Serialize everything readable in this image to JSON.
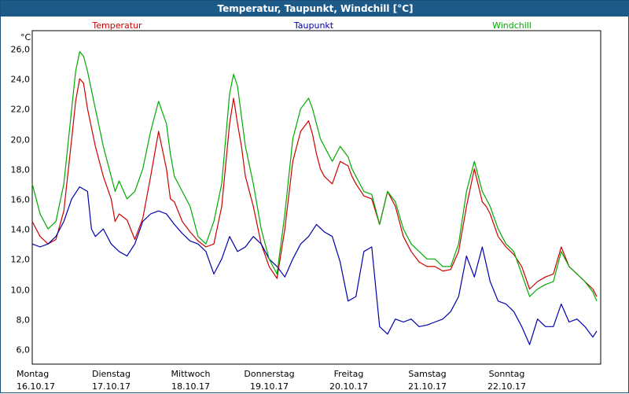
{
  "window": {
    "title": "Temperatur, Taupunkt, Windchill [°C]"
  },
  "chart_data": {
    "type": "line",
    "title": "Temperatur, Taupunkt, Windchill [°C]",
    "ylabel": "°C",
    "ylim": [
      5.0,
      27.2
    ],
    "xlim": [
      0,
      7.2
    ],
    "grid": true,
    "legend_position": "top",
    "yticks": [
      "26,0",
      "24,0",
      "22,0",
      "20,0",
      "18,0",
      "16,0",
      "14,0",
      "12,0",
      "10,0",
      "8,0",
      "6,0"
    ],
    "ytick_values": [
      26,
      24,
      22,
      20,
      18,
      16,
      14,
      12,
      10,
      8,
      6
    ],
    "xticks": [
      {
        "day": "Montag",
        "date": "16.10.17"
      },
      {
        "day": "Dienstag",
        "date": "17.10.17"
      },
      {
        "day": "Mittwoch",
        "date": "18.10.17"
      },
      {
        "day": "Donnerstag",
        "date": "19.10.17"
      },
      {
        "day": "Freitag",
        "date": "20.10.17"
      },
      {
        "day": "Samstag",
        "date": "21.10.17"
      },
      {
        "day": "Sonntag",
        "date": "22.10.17"
      }
    ],
    "series": [
      {
        "name": "Temperatur",
        "color": "#cc0000",
        "x": [
          0,
          0.1,
          0.2,
          0.3,
          0.4,
          0.5,
          0.55,
          0.6,
          0.65,
          0.7,
          0.8,
          0.9,
          1.0,
          1.05,
          1.1,
          1.2,
          1.3,
          1.4,
          1.5,
          1.6,
          1.7,
          1.75,
          1.8,
          1.9,
          2.0,
          2.1,
          2.2,
          2.3,
          2.4,
          2.5,
          2.55,
          2.6,
          2.65,
          2.7,
          2.8,
          2.9,
          3.0,
          3.1,
          3.2,
          3.3,
          3.4,
          3.5,
          3.55,
          3.6,
          3.65,
          3.7,
          3.8,
          3.9,
          4.0,
          4.05,
          4.1,
          4.2,
          4.3,
          4.4,
          4.5,
          4.6,
          4.7,
          4.8,
          4.9,
          5.0,
          5.1,
          5.2,
          5.3,
          5.4,
          5.5,
          5.6,
          5.7,
          5.75,
          5.8,
          5.9,
          6.0,
          6.1,
          6.2,
          6.3,
          6.4,
          6.5,
          6.6,
          6.7,
          6.8,
          6.9,
          7.0,
          7.1,
          7.15
        ],
        "y": [
          14.5,
          13.5,
          13.0,
          13.3,
          15.2,
          20.0,
          22.5,
          24.0,
          23.7,
          22.0,
          19.5,
          17.5,
          16.0,
          14.5,
          15.0,
          14.6,
          13.3,
          14.7,
          17.5,
          20.5,
          18.0,
          16.0,
          15.8,
          14.5,
          13.8,
          13.2,
          12.8,
          13.0,
          15.5,
          21.0,
          22.7,
          21.0,
          19.5,
          17.5,
          15.5,
          13.0,
          11.5,
          10.7,
          14.0,
          18.5,
          20.5,
          21.2,
          20.3,
          19.0,
          18.0,
          17.5,
          17.0,
          18.5,
          18.2,
          17.5,
          17.0,
          16.2,
          16.0,
          14.3,
          16.5,
          15.5,
          13.5,
          12.5,
          11.8,
          11.5,
          11.5,
          11.2,
          11.3,
          12.5,
          15.5,
          18.0,
          15.8,
          15.5,
          15.0,
          13.5,
          12.8,
          12.3,
          11.5,
          10.0,
          10.5,
          10.8,
          11.0,
          12.8,
          11.5,
          11.0,
          10.5,
          10.0,
          9.5
        ]
      },
      {
        "name": "Taupunkt",
        "color": "#0000aa",
        "x": [
          0,
          0.1,
          0.2,
          0.3,
          0.4,
          0.5,
          0.6,
          0.7,
          0.75,
          0.8,
          0.9,
          1.0,
          1.1,
          1.2,
          1.3,
          1.4,
          1.5,
          1.6,
          1.7,
          1.8,
          1.9,
          2.0,
          2.1,
          2.2,
          2.3,
          2.4,
          2.5,
          2.6,
          2.7,
          2.8,
          2.9,
          3.0,
          3.1,
          3.2,
          3.3,
          3.4,
          3.5,
          3.6,
          3.7,
          3.8,
          3.9,
          4.0,
          4.1,
          4.2,
          4.3,
          4.4,
          4.5,
          4.6,
          4.7,
          4.8,
          4.9,
          5.0,
          5.1,
          5.2,
          5.3,
          5.4,
          5.5,
          5.6,
          5.7,
          5.8,
          5.9,
          6.0,
          6.1,
          6.2,
          6.3,
          6.4,
          6.5,
          6.6,
          6.7,
          6.8,
          6.9,
          7.0,
          7.1,
          7.15
        ],
        "y": [
          13.0,
          12.8,
          13.0,
          13.5,
          14.5,
          16.0,
          16.8,
          16.5,
          14.0,
          13.5,
          14.0,
          13.0,
          12.5,
          12.2,
          13.0,
          14.5,
          15.0,
          15.2,
          15.0,
          14.3,
          13.7,
          13.2,
          13.0,
          12.5,
          11.0,
          12.0,
          13.5,
          12.5,
          12.8,
          13.5,
          13.0,
          12.0,
          11.5,
          10.8,
          12.0,
          13.0,
          13.5,
          14.3,
          13.8,
          13.5,
          11.8,
          9.2,
          9.5,
          12.5,
          12.8,
          7.5,
          7.0,
          8.0,
          7.8,
          8.0,
          7.5,
          7.6,
          7.8,
          8.0,
          8.5,
          9.5,
          12.2,
          10.8,
          12.8,
          10.5,
          9.2,
          9.0,
          8.5,
          7.5,
          6.3,
          8.0,
          7.5,
          7.5,
          9.0,
          7.8,
          8.0,
          7.5,
          6.8,
          7.2
        ]
      },
      {
        "name": "Windchill",
        "color": "#00aa00",
        "x": [
          0,
          0.1,
          0.2,
          0.3,
          0.4,
          0.5,
          0.55,
          0.6,
          0.65,
          0.7,
          0.8,
          0.9,
          1.0,
          1.05,
          1.1,
          1.2,
          1.3,
          1.4,
          1.5,
          1.6,
          1.7,
          1.75,
          1.8,
          1.9,
          2.0,
          2.1,
          2.2,
          2.3,
          2.4,
          2.5,
          2.55,
          2.6,
          2.65,
          2.7,
          2.8,
          2.9,
          3.0,
          3.1,
          3.2,
          3.3,
          3.4,
          3.5,
          3.55,
          3.6,
          3.65,
          3.7,
          3.8,
          3.9,
          4.0,
          4.05,
          4.1,
          4.2,
          4.3,
          4.4,
          4.5,
          4.6,
          4.7,
          4.8,
          4.9,
          5.0,
          5.1,
          5.2,
          5.3,
          5.4,
          5.5,
          5.6,
          5.7,
          5.75,
          5.8,
          5.9,
          6.0,
          6.1,
          6.2,
          6.3,
          6.4,
          6.5,
          6.6,
          6.7,
          6.8,
          6.9,
          7.0,
          7.1,
          7.15
        ],
        "y": [
          17.0,
          15.0,
          14.0,
          14.5,
          17.0,
          22.0,
          24.5,
          25.8,
          25.5,
          24.5,
          22.0,
          19.5,
          17.5,
          16.5,
          17.2,
          16.0,
          16.5,
          18.0,
          20.5,
          22.5,
          21.0,
          19.0,
          17.5,
          16.5,
          15.5,
          13.5,
          13.0,
          14.5,
          17.0,
          23.0,
          24.3,
          23.5,
          21.5,
          19.5,
          17.0,
          14.0,
          12.0,
          11.0,
          15.0,
          20.0,
          22.0,
          22.7,
          22.0,
          21.0,
          20.0,
          19.5,
          18.5,
          19.5,
          18.8,
          18.0,
          17.5,
          16.5,
          16.3,
          14.3,
          16.5,
          15.8,
          14.0,
          13.0,
          12.5,
          12.0,
          12.0,
          11.5,
          11.5,
          13.0,
          16.5,
          18.5,
          16.5,
          16.0,
          15.5,
          14.0,
          13.0,
          12.5,
          11.0,
          9.5,
          10.0,
          10.3,
          10.5,
          12.5,
          11.5,
          11.0,
          10.5,
          9.8,
          9.2
        ]
      }
    ]
  }
}
